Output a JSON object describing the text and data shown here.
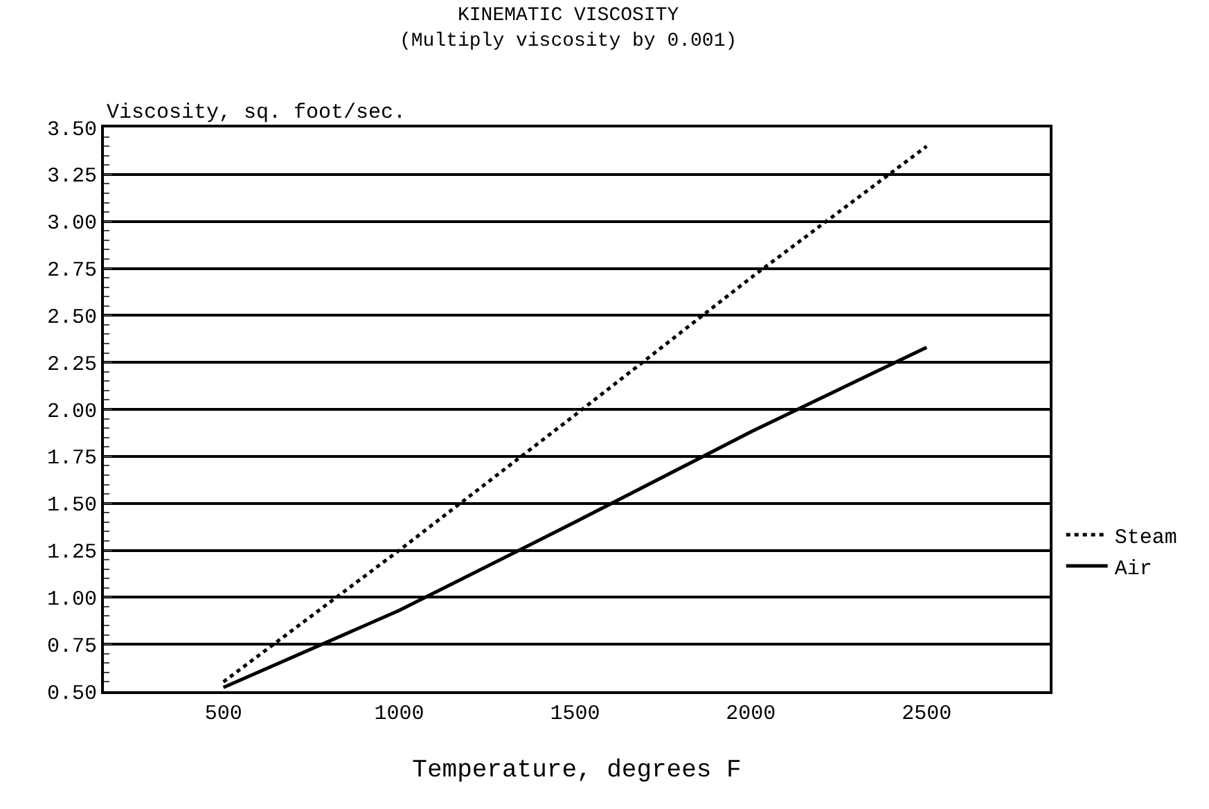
{
  "chart_data": {
    "type": "line",
    "title": "KINEMATIC VISCOSITY",
    "subtitle": "(Multiply viscosity by 0.001)",
    "xlabel": "Temperature, degrees F",
    "ylabel": "Viscosity, sq. foot/sec.",
    "x": [
      500,
      1000,
      1500,
      2000,
      2500
    ],
    "series": [
      {
        "name": "Steam",
        "color": "#000000",
        "line_style": "dotted",
        "values": [
          0.55,
          1.25,
          1.97,
          2.7,
          3.4
        ]
      },
      {
        "name": "Air",
        "color": "#000000",
        "line_style": "solid",
        "values": [
          0.52,
          0.93,
          1.4,
          1.88,
          2.33
        ]
      }
    ],
    "xlim": [
      160,
      2850
    ],
    "xticks": [
      500,
      1000,
      1500,
      2000,
      2500
    ],
    "ylim": [
      0.5,
      3.5
    ],
    "yticks": [
      {
        "value": 0.5,
        "label": "0.50"
      },
      {
        "value": 0.75,
        "label": "0.75"
      },
      {
        "value": 1.0,
        "label": "1.00"
      },
      {
        "value": 1.25,
        "label": "1.25"
      },
      {
        "value": 1.5,
        "label": "1.50"
      },
      {
        "value": 1.75,
        "label": "1.75"
      },
      {
        "value": 2.0,
        "label": "2.00"
      },
      {
        "value": 2.25,
        "label": "2.25"
      },
      {
        "value": 2.5,
        "label": "2.50"
      },
      {
        "value": 2.75,
        "label": "2.75"
      },
      {
        "value": 3.0,
        "label": "3.00"
      },
      {
        "value": 3.25,
        "label": "3.25"
      },
      {
        "value": 3.5,
        "label": "3.50"
      }
    ],
    "grid": "y",
    "legend": "right",
    "marker": "none"
  }
}
